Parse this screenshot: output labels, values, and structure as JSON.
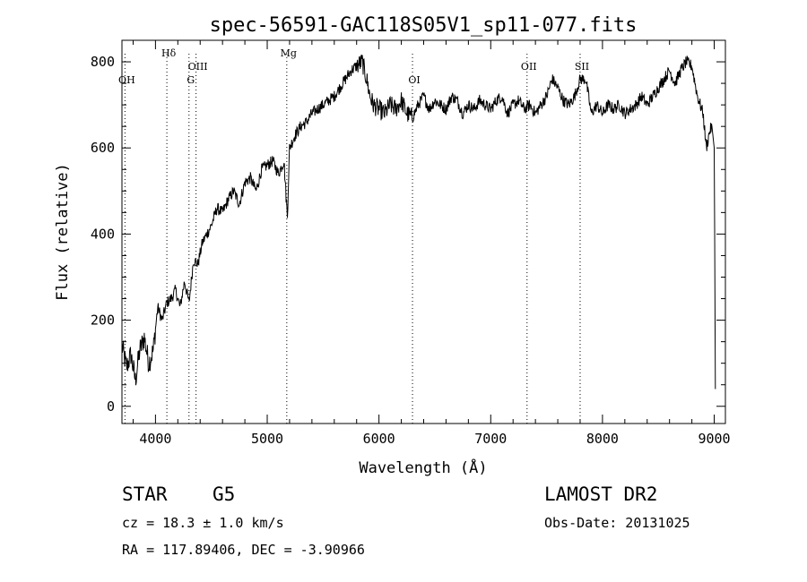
{
  "chart_data": {
    "type": "line",
    "title": "spec-56591-GAC118S05V1_sp11-077.fits",
    "xlabel": "Wavelength (Å)",
    "ylabel": "Flux (relative)",
    "xlim": [
      3700,
      9100
    ],
    "ylim": [
      -40,
      850
    ],
    "xticks": [
      4000,
      5000,
      6000,
      7000,
      8000,
      9000
    ],
    "yticks": [
      0,
      200,
      400,
      600,
      800
    ],
    "grid": false,
    "series": [
      {
        "x": [
          3700,
          3740,
          3780,
          3820,
          3860,
          3900,
          3940,
          3980,
          4020,
          4060,
          4100,
          4140,
          4180,
          4220,
          4260,
          4300,
          4340,
          4380,
          4420,
          4460,
          4500,
          4550,
          4600,
          4650,
          4700,
          4750,
          4800,
          4850,
          4900,
          4950,
          5000,
          5050,
          5100,
          5150,
          5180,
          5200,
          5250,
          5300,
          5350,
          5400,
          5450,
          5500,
          5550,
          5600,
          5650,
          5700,
          5750,
          5800,
          5850,
          5890,
          5920,
          5950,
          6000,
          6050,
          6100,
          6150,
          6200,
          6250,
          6300,
          6350,
          6400,
          6450,
          6500,
          6550,
          6600,
          6650,
          6700,
          6750,
          6800,
          6850,
          6900,
          6950,
          7000,
          7050,
          7100,
          7150,
          7200,
          7250,
          7300,
          7350,
          7400,
          7450,
          7500,
          7550,
          7600,
          7650,
          7700,
          7750,
          7800,
          7850,
          7900,
          7950,
          8000,
          8050,
          8100,
          8150,
          8200,
          8250,
          8300,
          8350,
          8400,
          8450,
          8500,
          8550,
          8600,
          8650,
          8700,
          8750,
          8800,
          8850,
          8900,
          8930,
          8960,
          8980,
          9000,
          9010
        ],
        "y": [
          140,
          90,
          120,
          60,
          130,
          160,
          100,
          130,
          230,
          200,
          240,
          250,
          270,
          230,
          290,
          240,
          340,
          330,
          380,
          400,
          420,
          460,
          450,
          480,
          500,
          470,
          520,
          530,
          500,
          550,
          560,
          570,
          540,
          570,
          440,
          600,
          630,
          650,
          660,
          680,
          690,
          700,
          710,
          720,
          740,
          760,
          780,
          790,
          800,
          760,
          720,
          700,
          690,
          680,
          700,
          690,
          710,
          680,
          670,
          700,
          720,
          690,
          710,
          700,
          690,
          720,
          710,
          680,
          700,
          690,
          710,
          700,
          690,
          710,
          720,
          680,
          700,
          710,
          690,
          700,
          680,
          700,
          720,
          760,
          740,
          710,
          700,
          720,
          760,
          760,
          680,
          700,
          680,
          700,
          690,
          700,
          680,
          690,
          700,
          720,
          700,
          720,
          740,
          760,
          780,
          750,
          780,
          800,
          790,
          720,
          680,
          600,
          640,
          650,
          600,
          40
        ]
      }
    ],
    "lines": [
      {
        "label": "OH",
        "wavelength": 3727,
        "label_row": 1
      },
      {
        "label": "Hδ",
        "wavelength": 4102,
        "label_row": 0
      },
      {
        "label": "G",
        "wavelength": 4300,
        "label_row": 1
      },
      {
        "label": "OIII",
        "wavelength": 4363,
        "label_row": 0.5
      },
      {
        "label": "Mg",
        "wavelength": 5175,
        "label_row": 0
      },
      {
        "label": "OI",
        "wavelength": 6300,
        "label_row": 1
      },
      {
        "label": "OII",
        "wavelength": 7325,
        "label_row": 0.5
      },
      {
        "label": "SII",
        "wavelength": 7800,
        "label_row": 0.5
      }
    ]
  },
  "info": {
    "class": "STAR",
    "subclass": "G5",
    "cz": "cz = 18.3 ± 1.0 km/s",
    "radec": "RA = 117.89406, DEC =  -3.90966",
    "survey": "LAMOST DR2",
    "obsdate": "Obs-Date: 20131025"
  }
}
